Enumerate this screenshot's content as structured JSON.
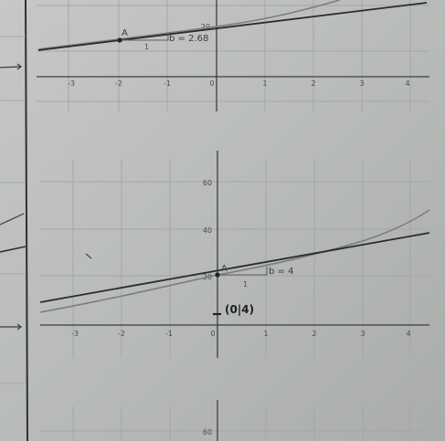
{
  "graph1": {
    "x_ticks": [
      "-3",
      "-2",
      "-1",
      "0",
      "1",
      "2",
      "3",
      "4"
    ],
    "y_ticks": [
      "20"
    ],
    "point_label": "A",
    "slope_label": "b = 2.68",
    "run_label": "1"
  },
  "graph2": {
    "x_ticks": [
      "-3",
      "-2",
      "-1",
      "0",
      "1",
      "2",
      "3",
      "4"
    ],
    "y_ticks": [
      "60",
      "40",
      "20"
    ],
    "point_label": "A",
    "slope_label": "b = 4",
    "run_label": "1",
    "handwritten_note": "(0|4)"
  },
  "graph3": {
    "y_ticks": [
      "60"
    ]
  },
  "colors": {
    "paper": "#b9bcba",
    "grid": "#a4a7a5",
    "axis": "#3c3e3d",
    "curve": "#7b7e7c",
    "tangent": "#2a2c2b"
  }
}
